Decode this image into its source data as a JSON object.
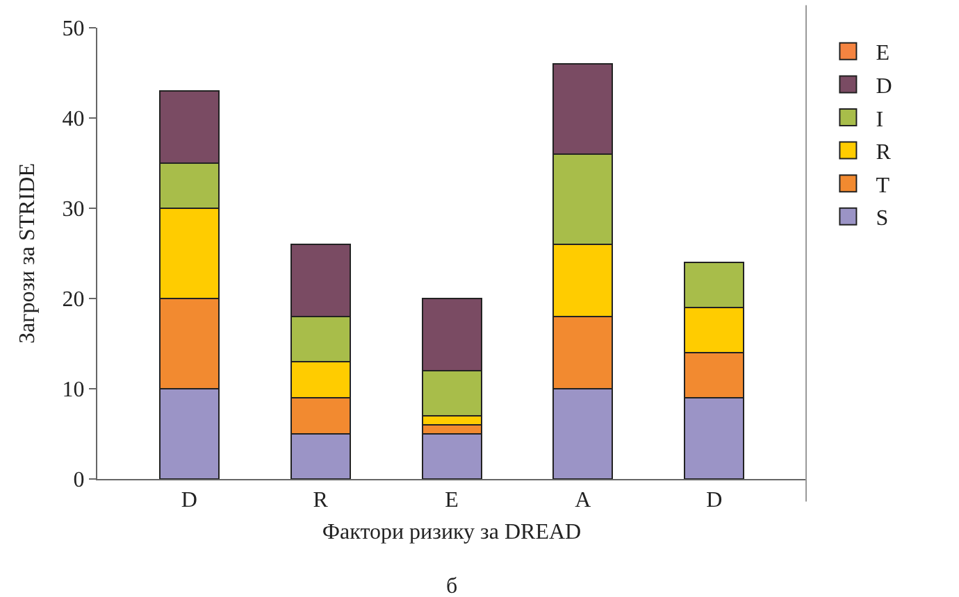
{
  "chart_data": {
    "type": "bar",
    "stacked": true,
    "xlabel": "Фактори ризику за DREAD",
    "ylabel": "Загрози за STRIDE",
    "categories": [
      "D",
      "R",
      "E",
      "A",
      "D"
    ],
    "series": [
      {
        "name": "S",
        "color": "#9b94c6",
        "values": [
          10,
          5,
          5,
          10,
          9
        ]
      },
      {
        "name": "T",
        "color": "#f28a30",
        "values": [
          10,
          4,
          1,
          8,
          5
        ]
      },
      {
        "name": "R",
        "color": "#ffcc00",
        "values": [
          10,
          4,
          1,
          8,
          5
        ]
      },
      {
        "name": "I",
        "color": "#a8bd4a",
        "values": [
          5,
          5,
          5,
          10,
          5
        ]
      },
      {
        "name": "D",
        "color": "#7a4b63",
        "values": [
          8,
          8,
          8,
          10,
          null
        ]
      },
      {
        "name": "E",
        "color": "#f58441",
        "values": [
          null,
          null,
          null,
          null,
          null
        ]
      }
    ],
    "ylim": [
      0,
      50
    ],
    "yticks": [
      0,
      10,
      20,
      30,
      40,
      50
    ],
    "legend": "right",
    "annotations": [
      "б"
    ]
  }
}
